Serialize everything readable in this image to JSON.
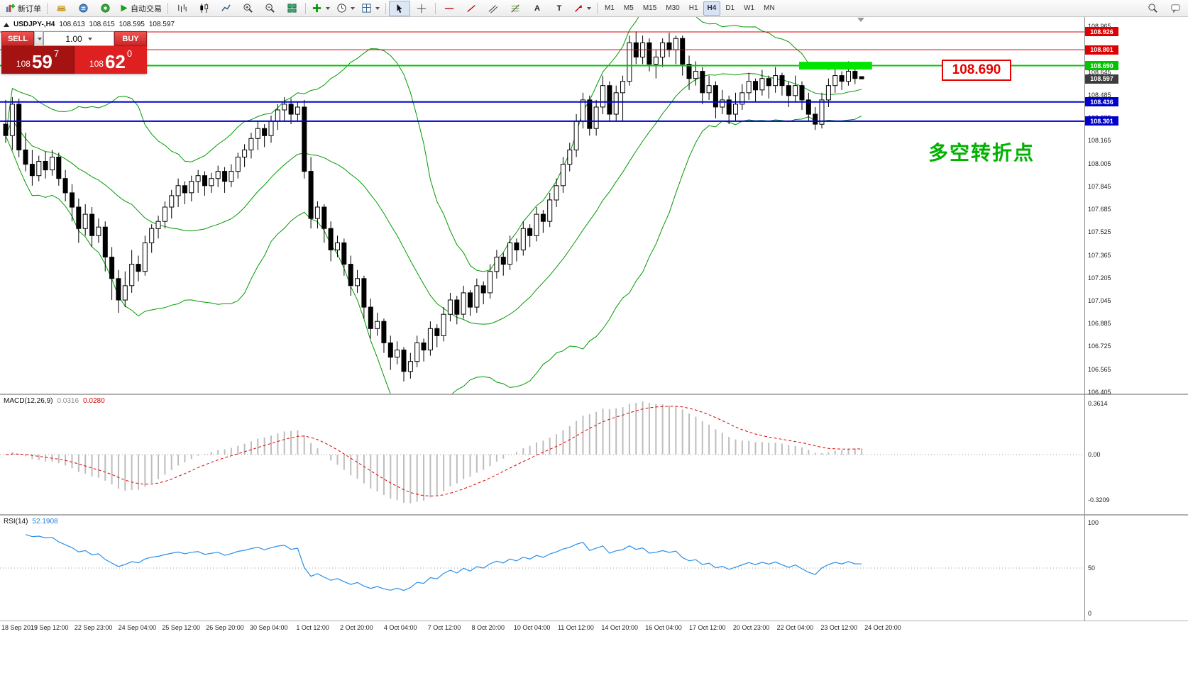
{
  "toolbar": {
    "new_order": "新订单",
    "autotrading": "自动交易",
    "text_tool": "A",
    "label_tool": "T",
    "timeframes": [
      "M1",
      "M5",
      "M15",
      "M30",
      "H1",
      "H4",
      "D1",
      "W1",
      "MN"
    ],
    "active_timeframe": "H4"
  },
  "symbol_bar": {
    "symbol": "USDJPY-,H4",
    "open": "108.613",
    "high": "108.615",
    "low": "108.595",
    "close": "108.597"
  },
  "one_click": {
    "sell_label": "SELL",
    "buy_label": "BUY",
    "volume": "1.00",
    "sell_small": "108",
    "sell_big": "59",
    "sell_sup": "7",
    "buy_small": "108",
    "buy_big": "62",
    "buy_sup": "0"
  },
  "annotations": {
    "level_label": "108.690",
    "note_text": "多空转折点",
    "note_color": "#00b200"
  },
  "levels": [
    {
      "price": 108.926,
      "label": "108.926",
      "color": "#dd0000",
      "width": 1
    },
    {
      "price": 108.801,
      "label": "108.801",
      "color": "#dd0000",
      "width": 1
    },
    {
      "price": 108.69,
      "label": "108.690",
      "color": "#00c400",
      "width": 2
    },
    {
      "price": 108.436,
      "label": "108.436",
      "color": "#0000cc",
      "width": 2
    },
    {
      "price": 108.301,
      "label": "108.301",
      "color": "#0000cc",
      "width": 2
    }
  ],
  "current_price": {
    "label": "108.597",
    "value": 108.597,
    "badge_color": "#3c3c3c"
  },
  "highlight_zone": {
    "from_index": 120,
    "to_index": 131,
    "price_top": 108.717,
    "price_bottom": 108.663,
    "color": "#00e400"
  },
  "axis": {
    "y_ticks": [
      "108.965",
      "108.645",
      "108.485",
      "108.325",
      "108.165",
      "108.005",
      "107.845",
      "107.685",
      "107.525",
      "107.365",
      "107.205",
      "107.045",
      "106.885",
      "106.725",
      "106.565",
      "106.405"
    ],
    "x_ticks": [
      "18 Sep 2019",
      "19 Sep 12:00",
      "22 Sep 23:00",
      "24 Sep 04:00",
      "25 Sep 12:00",
      "26 Sep 20:00",
      "30 Sep 04:00",
      "1 Oct 12:00",
      "2 Oct 20:00",
      "4 Oct 04:00",
      "7 Oct 12:00",
      "8 Oct 20:00",
      "10 Oct 04:00",
      "11 Oct 12:00",
      "14 Oct 20:00",
      "16 Oct 04:00",
      "17 Oct 12:00",
      "20 Oct 23:00",
      "22 Oct 04:00",
      "23 Oct 12:00",
      "24 Oct 20:00"
    ]
  },
  "macd_pane": {
    "title": "MACD(12,26,9)",
    "main_value": "0.0316",
    "signal_value": "0.0280",
    "ticks": [
      "0.3614",
      "0.00",
      "-0.3209"
    ],
    "histogram_color": "#bdbdbd",
    "signal_color": "#e00000"
  },
  "rsi_pane": {
    "title": "RSI(14)",
    "value": "52.1908",
    "ticks": [
      "100",
      "50",
      "0"
    ],
    "line_color": "#2a8fe8"
  },
  "chart_data": {
    "type": "candlestick",
    "symbol": "USDJPY-",
    "timeframe": "H4",
    "visible_price_range": [
      106.405,
      108.965
    ],
    "bollinger": {
      "period": 20,
      "deviation": 2,
      "color": "#009a00"
    },
    "candles": [
      [
        108.28,
        108.45,
        108.15,
        108.2
      ],
      [
        108.2,
        108.47,
        108.1,
        108.42
      ],
      [
        108.42,
        108.46,
        108.05,
        108.1
      ],
      [
        108.1,
        108.22,
        107.95,
        108.0
      ],
      [
        108.0,
        108.1,
        107.85,
        107.92
      ],
      [
        107.92,
        108.06,
        107.88,
        108.02
      ],
      [
        108.02,
        108.09,
        107.9,
        107.96
      ],
      [
        107.96,
        108.1,
        107.92,
        108.05
      ],
      [
        108.05,
        108.08,
        107.85,
        107.9
      ],
      [
        107.9,
        107.96,
        107.74,
        107.8
      ],
      [
        107.8,
        107.86,
        107.6,
        107.7
      ],
      [
        107.7,
        107.76,
        107.45,
        107.55
      ],
      [
        107.55,
        107.72,
        107.5,
        107.65
      ],
      [
        107.65,
        107.7,
        107.42,
        107.5
      ],
      [
        107.5,
        107.62,
        107.45,
        107.56
      ],
      [
        107.56,
        107.6,
        107.25,
        107.35
      ],
      [
        107.35,
        107.42,
        107.05,
        107.2
      ],
      [
        107.2,
        107.26,
        106.96,
        107.05
      ],
      [
        107.05,
        107.25,
        107.0,
        107.15
      ],
      [
        107.15,
        107.4,
        107.1,
        107.3
      ],
      [
        107.3,
        107.36,
        107.18,
        107.25
      ],
      [
        107.25,
        107.5,
        107.22,
        107.45
      ],
      [
        107.45,
        107.58,
        107.38,
        107.55
      ],
      [
        107.55,
        107.64,
        107.48,
        107.6
      ],
      [
        107.6,
        107.74,
        107.55,
        107.7
      ],
      [
        107.7,
        107.82,
        107.62,
        107.78
      ],
      [
        107.78,
        107.9,
        107.7,
        107.85
      ],
      [
        107.85,
        107.88,
        107.72,
        107.8
      ],
      [
        107.8,
        107.92,
        107.74,
        107.88
      ],
      [
        107.88,
        107.96,
        107.8,
        107.92
      ],
      [
        107.92,
        107.95,
        107.78,
        107.85
      ],
      [
        107.85,
        107.94,
        107.8,
        107.9
      ],
      [
        107.9,
        107.99,
        107.84,
        107.95
      ],
      [
        107.95,
        107.98,
        107.8,
        107.88
      ],
      [
        107.88,
        108.0,
        107.84,
        107.95
      ],
      [
        107.95,
        108.08,
        107.9,
        108.05
      ],
      [
        108.05,
        108.14,
        107.98,
        108.1
      ],
      [
        108.1,
        108.22,
        108.04,
        108.18
      ],
      [
        108.18,
        108.3,
        108.1,
        108.25
      ],
      [
        108.25,
        108.28,
        108.12,
        108.2
      ],
      [
        108.2,
        108.34,
        108.15,
        108.3
      ],
      [
        108.3,
        108.42,
        108.24,
        108.38
      ],
      [
        108.38,
        108.47,
        108.3,
        108.42
      ],
      [
        108.42,
        108.46,
        108.28,
        108.35
      ],
      [
        108.35,
        108.44,
        108.3,
        108.4
      ],
      [
        108.4,
        108.45,
        107.9,
        107.95
      ],
      [
        107.95,
        108.05,
        107.55,
        107.62
      ],
      [
        107.62,
        107.74,
        107.55,
        107.7
      ],
      [
        107.7,
        107.72,
        107.45,
        107.55
      ],
      [
        107.55,
        107.6,
        107.32,
        107.4
      ],
      [
        107.4,
        107.5,
        107.35,
        107.45
      ],
      [
        107.45,
        107.48,
        107.22,
        107.3
      ],
      [
        107.3,
        107.36,
        107.08,
        107.15
      ],
      [
        107.15,
        107.26,
        107.1,
        107.2
      ],
      [
        107.2,
        107.22,
        106.92,
        107.0
      ],
      [
        107.0,
        107.06,
        106.78,
        106.85
      ],
      [
        106.85,
        106.96,
        106.8,
        106.9
      ],
      [
        106.9,
        106.92,
        106.68,
        106.75
      ],
      [
        106.75,
        106.8,
        106.56,
        106.65
      ],
      [
        106.65,
        106.76,
        106.6,
        106.7
      ],
      [
        106.7,
        106.72,
        106.48,
        106.55
      ],
      [
        106.55,
        106.68,
        106.5,
        106.62
      ],
      [
        106.62,
        106.8,
        106.58,
        106.75
      ],
      [
        106.75,
        106.78,
        106.62,
        106.7
      ],
      [
        106.7,
        106.9,
        106.66,
        106.85
      ],
      [
        106.85,
        106.88,
        106.72,
        106.8
      ],
      [
        106.8,
        107.0,
        106.76,
        106.95
      ],
      [
        106.95,
        107.1,
        106.9,
        107.05
      ],
      [
        107.05,
        107.08,
        106.88,
        106.95
      ],
      [
        106.95,
        107.15,
        106.92,
        107.1
      ],
      [
        107.1,
        107.12,
        106.94,
        107.0
      ],
      [
        107.0,
        107.2,
        106.96,
        107.15
      ],
      [
        107.15,
        107.18,
        107.02,
        107.1
      ],
      [
        107.1,
        107.3,
        107.06,
        107.25
      ],
      [
        107.25,
        107.4,
        107.2,
        107.35
      ],
      [
        107.35,
        107.38,
        107.22,
        107.3
      ],
      [
        107.3,
        107.5,
        107.26,
        107.45
      ],
      [
        107.45,
        107.48,
        107.32,
        107.4
      ],
      [
        107.4,
        107.6,
        107.36,
        107.55
      ],
      [
        107.55,
        107.58,
        107.42,
        107.5
      ],
      [
        107.5,
        107.7,
        107.46,
        107.65
      ],
      [
        107.65,
        107.68,
        107.52,
        107.6
      ],
      [
        107.6,
        107.8,
        107.56,
        107.75
      ],
      [
        107.75,
        107.9,
        107.7,
        107.85
      ],
      [
        107.85,
        108.05,
        107.8,
        108.0
      ],
      [
        108.0,
        108.15,
        107.95,
        108.1
      ],
      [
        108.1,
        108.35,
        108.05,
        108.3
      ],
      [
        108.3,
        108.5,
        108.25,
        108.45
      ],
      [
        108.45,
        108.48,
        108.2,
        108.25
      ],
      [
        108.25,
        108.45,
        108.2,
        108.4
      ],
      [
        108.4,
        108.62,
        108.35,
        108.55
      ],
      [
        108.55,
        108.58,
        108.3,
        108.35
      ],
      [
        108.35,
        108.55,
        108.3,
        108.5
      ],
      [
        108.5,
        108.62,
        108.3,
        108.58
      ],
      [
        108.58,
        108.9,
        108.55,
        108.85
      ],
      [
        108.85,
        108.93,
        108.7,
        108.75
      ],
      [
        108.75,
        108.9,
        108.7,
        108.85
      ],
      [
        108.85,
        108.88,
        108.65,
        108.7
      ],
      [
        108.7,
        108.8,
        108.6,
        108.75
      ],
      [
        108.75,
        108.88,
        108.68,
        108.85
      ],
      [
        108.85,
        108.92,
        108.75,
        108.8
      ],
      [
        108.8,
        108.9,
        108.7,
        108.88
      ],
      [
        108.88,
        108.9,
        108.62,
        108.7
      ],
      [
        108.7,
        108.76,
        108.52,
        108.6
      ],
      [
        108.6,
        108.72,
        108.55,
        108.65
      ],
      [
        108.65,
        108.68,
        108.42,
        108.5
      ],
      [
        108.5,
        108.62,
        108.45,
        108.55
      ],
      [
        108.55,
        108.58,
        108.32,
        108.4
      ],
      [
        108.4,
        108.52,
        108.35,
        108.45
      ],
      [
        108.45,
        108.48,
        108.28,
        108.35
      ],
      [
        108.35,
        108.5,
        108.3,
        108.42
      ],
      [
        108.42,
        108.56,
        108.38,
        108.5
      ],
      [
        108.5,
        108.64,
        108.45,
        108.58
      ],
      [
        108.58,
        108.6,
        108.44,
        108.52
      ],
      [
        108.52,
        108.66,
        108.48,
        108.6
      ],
      [
        108.6,
        108.62,
        108.46,
        108.55
      ],
      [
        108.55,
        108.68,
        108.5,
        108.62
      ],
      [
        108.62,
        108.64,
        108.48,
        108.55
      ],
      [
        108.55,
        108.58,
        108.4,
        108.48
      ],
      [
        108.48,
        108.62,
        108.44,
        108.55
      ],
      [
        108.55,
        108.58,
        108.38,
        108.45
      ],
      [
        108.45,
        108.5,
        108.3,
        108.35
      ],
      [
        108.35,
        108.4,
        108.24,
        108.28
      ],
      [
        108.28,
        108.5,
        108.25,
        108.45
      ],
      [
        108.45,
        108.6,
        108.4,
        108.55
      ],
      [
        108.55,
        108.68,
        108.5,
        108.62
      ],
      [
        108.62,
        108.65,
        108.52,
        108.58
      ],
      [
        108.58,
        108.72,
        108.55,
        108.65
      ],
      [
        108.65,
        108.68,
        108.56,
        108.6
      ],
      [
        108.613,
        108.615,
        108.595,
        108.597
      ]
    ]
  }
}
